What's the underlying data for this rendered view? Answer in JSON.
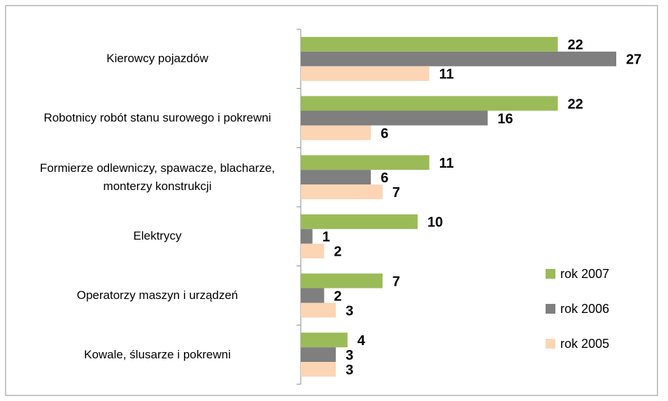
{
  "chart_data": {
    "type": "hbar",
    "categories": [
      "Kierowcy pojazdów",
      "Robotnicy robót stanu surowego i pokrewni",
      "Formierze odlewniczy, spawacze, blacharze, monterzy konstrukcji",
      "Elektrycy",
      "Operatorzy maszyn i urządzeń",
      "Kowale, ślusarze i pokrewni"
    ],
    "series": [
      {
        "name": "rok 2007",
        "color": "#9bbb59",
        "values": [
          22,
          22,
          11,
          10,
          7,
          4
        ]
      },
      {
        "name": "rok 2006",
        "color": "#7f7f7f",
        "values": [
          27,
          16,
          6,
          1,
          2,
          3
        ]
      },
      {
        "name": "rok 2005",
        "color": "#fcd5b5",
        "values": [
          11,
          6,
          7,
          2,
          3,
          3
        ]
      }
    ],
    "legend": "right"
  }
}
